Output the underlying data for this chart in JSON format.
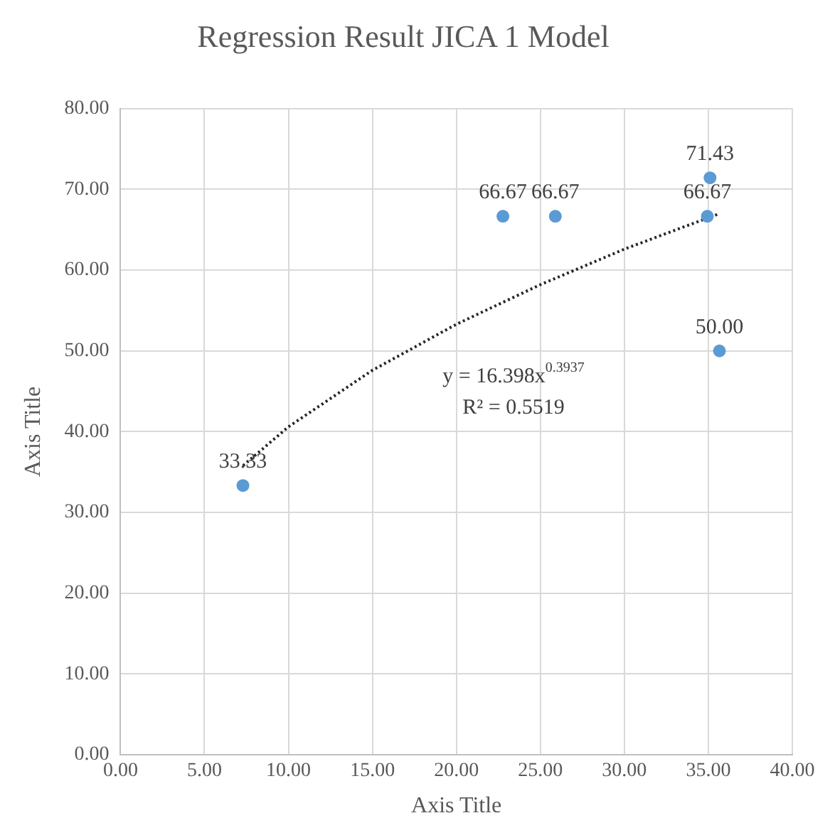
{
  "chart_data": {
    "type": "scatter",
    "title": "Regression Result JICA 1 Model",
    "xlabel": "Axis Title",
    "ylabel": "Axis Title",
    "xlim": [
      0,
      40
    ],
    "ylim": [
      0,
      80
    ],
    "xticks": [
      {
        "value": 0,
        "label": "0.00"
      },
      {
        "value": 5,
        "label": "5.00"
      },
      {
        "value": 10,
        "label": "10.00"
      },
      {
        "value": 15,
        "label": "15.00"
      },
      {
        "value": 20,
        "label": "20.00"
      },
      {
        "value": 25,
        "label": "25.00"
      },
      {
        "value": 30,
        "label": "30.00"
      },
      {
        "value": 35,
        "label": "35.00"
      },
      {
        "value": 40,
        "label": "40.00"
      }
    ],
    "yticks": [
      {
        "value": 0,
        "label": "0.00"
      },
      {
        "value": 10,
        "label": "10.00"
      },
      {
        "value": 20,
        "label": "20.00"
      },
      {
        "value": 30,
        "label": "30.00"
      },
      {
        "value": 40,
        "label": "40.00"
      },
      {
        "value": 50,
        "label": "50.00"
      },
      {
        "value": 60,
        "label": "60.00"
      },
      {
        "value": 70,
        "label": "70.00"
      },
      {
        "value": 80,
        "label": "80.00"
      }
    ],
    "grid": true,
    "legend": false,
    "series": [
      {
        "color": "#5b9bd5",
        "marker": "circle",
        "x": [
          7.29,
          22.77,
          25.89,
          34.94,
          35.1,
          35.66
        ],
        "values": [
          33.33,
          66.67,
          66.67,
          66.67,
          71.43,
          50.0
        ],
        "value_labels": [
          "33.33",
          "66.67",
          "66.67",
          "66.67",
          "71.43",
          "50.00"
        ]
      },
      {
        "type": "line",
        "color": "#262626",
        "marker": "none",
        "line_style": "dotted",
        "x": [
          7.3,
          10,
          15,
          20,
          25,
          30,
          35.66
        ],
        "values": [
          35.8,
          40.6,
          47.6,
          53.3,
          58.2,
          62.6,
          67.0
        ]
      }
    ],
    "annotations": [
      "y = 16.398x$^{0.3937}$",
      "R² = 0.5519"
    ]
  }
}
